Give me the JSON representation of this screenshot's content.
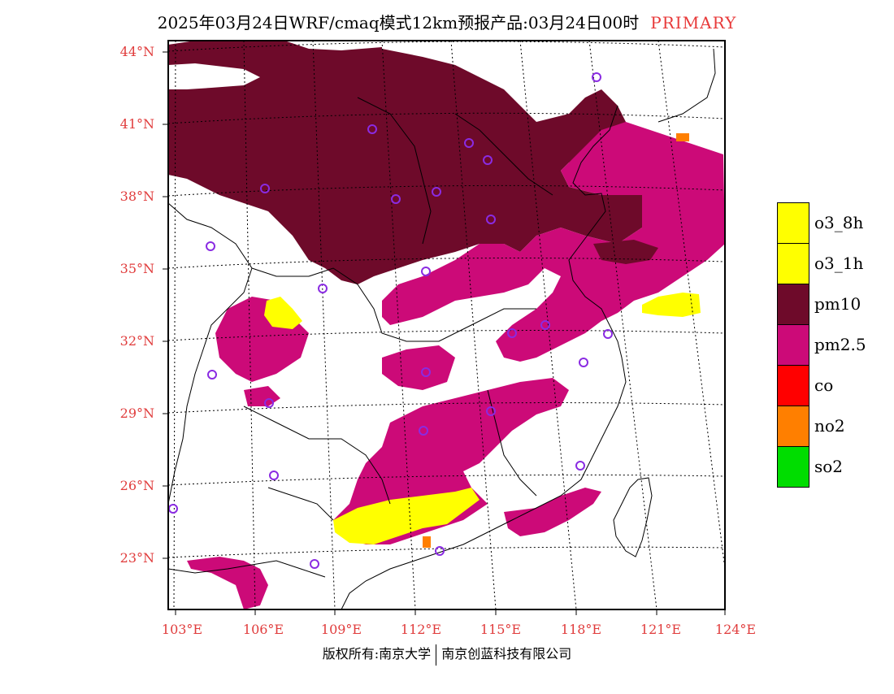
{
  "title": {
    "text": "2025年03月24日WRF/cmaq模式12km预报产品:03月24日00时",
    "tag": "PRIMARY",
    "tag_color": "#e83a3a"
  },
  "map": {
    "lat_labels": [
      "44°N",
      "41°N",
      "38°N",
      "35°N",
      "32°N",
      "29°N",
      "26°N",
      "23°N"
    ],
    "lon_labels": [
      "103°E",
      "106°E",
      "109°E",
      "112°E",
      "115°E",
      "118°E",
      "121°E",
      "124°E"
    ],
    "axis_label_color": "#e03c3c",
    "station_marker_color": "#8a2be2"
  },
  "legend": {
    "items": [
      {
        "label": "o3_8h",
        "color": "#ffff00"
      },
      {
        "label": "o3_1h",
        "color": "#ffff00"
      },
      {
        "label": "pm10",
        "color": "#6e0a2a"
      },
      {
        "label": "pm2.5",
        "color": "#cc0a78"
      },
      {
        "label": "co",
        "color": "#ff0000"
      },
      {
        "label": "no2",
        "color": "#ff7f00"
      },
      {
        "label": "so2",
        "color": "#00dd00"
      }
    ]
  },
  "copyright": {
    "left": "版权所有:南京大学",
    "right": "南京创蓝科技有限公司"
  }
}
